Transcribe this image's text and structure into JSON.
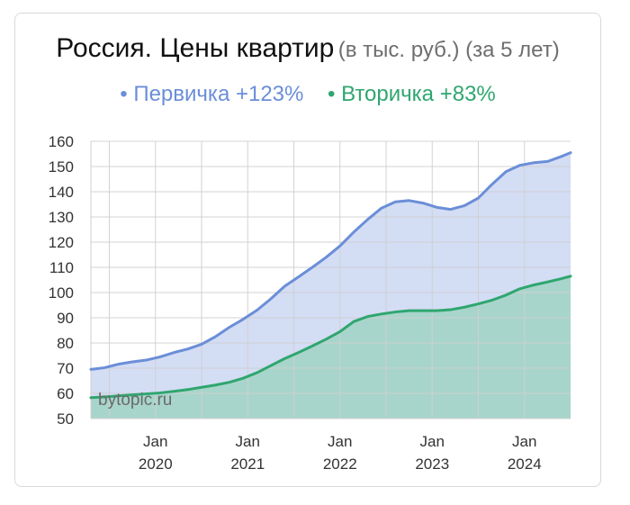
{
  "header": {
    "title": "Россия. Цены квартир",
    "subtitle": "(в тыс. руб.) (за 5 лет)"
  },
  "legend": [
    {
      "label": "• Первичка +123%",
      "color": "#6b8ed8"
    },
    {
      "label": "• Вторичка +83%",
      "color": "#2fa66f"
    }
  ],
  "watermark": "bytopic.ru",
  "chart_data": {
    "type": "area",
    "ylim": [
      50,
      160
    ],
    "yticks": [
      50,
      60,
      70,
      80,
      90,
      100,
      110,
      120,
      130,
      140,
      150,
      160
    ],
    "xlim": [
      2019.3,
      2024.5
    ],
    "xticks": [
      {
        "value": 2020.0,
        "line1": "Jan",
        "line2": "2020"
      },
      {
        "value": 2021.0,
        "line1": "Jan",
        "line2": "2021"
      },
      {
        "value": 2022.0,
        "line1": "Jan",
        "line2": "2022"
      },
      {
        "value": 2023.0,
        "line1": "Jan",
        "line2": "2023"
      },
      {
        "value": 2024.0,
        "line1": "Jan",
        "line2": "2024"
      }
    ],
    "grid": true,
    "series": [
      {
        "name": "Первичка",
        "color": "#6b8ed8",
        "fill": "#d3ddf4",
        "x": [
          2019.3,
          2019.45,
          2019.6,
          2019.75,
          2019.9,
          2020.05,
          2020.2,
          2020.35,
          2020.5,
          2020.65,
          2020.8,
          2020.95,
          2021.1,
          2021.25,
          2021.4,
          2021.55,
          2021.7,
          2021.85,
          2022.0,
          2022.15,
          2022.3,
          2022.45,
          2022.6,
          2022.75,
          2022.9,
          2023.05,
          2023.2,
          2023.35,
          2023.5,
          2023.65,
          2023.8,
          2023.95,
          2024.1,
          2024.25,
          2024.4,
          2024.5
        ],
        "values": [
          69.5,
          70.2,
          71.6,
          72.5,
          73.2,
          74.5,
          76.2,
          77.6,
          79.5,
          82.5,
          86.2,
          89.4,
          93.0,
          97.5,
          102.5,
          106.2,
          110.0,
          114.0,
          118.5,
          124.0,
          129.0,
          133.5,
          136.0,
          136.5,
          135.5,
          133.8,
          133.0,
          134.5,
          137.5,
          143.0,
          148.0,
          150.5,
          151.5,
          152.0,
          154.0,
          155.5
        ]
      },
      {
        "name": "Вторичка",
        "color": "#2fa66f",
        "fill": "#a8d5cb",
        "x": [
          2019.3,
          2019.45,
          2019.6,
          2019.75,
          2019.9,
          2020.05,
          2020.2,
          2020.35,
          2020.5,
          2020.65,
          2020.8,
          2020.95,
          2021.1,
          2021.25,
          2021.4,
          2021.55,
          2021.7,
          2021.85,
          2022.0,
          2022.15,
          2022.3,
          2022.45,
          2022.6,
          2022.75,
          2022.9,
          2023.05,
          2023.2,
          2023.35,
          2023.5,
          2023.65,
          2023.8,
          2023.95,
          2024.1,
          2024.25,
          2024.4,
          2024.5
        ],
        "values": [
          58.3,
          58.6,
          59.0,
          59.4,
          59.8,
          60.2,
          60.8,
          61.5,
          62.4,
          63.3,
          64.4,
          66.0,
          68.2,
          71.0,
          73.8,
          76.2,
          78.8,
          81.5,
          84.5,
          88.5,
          90.5,
          91.5,
          92.3,
          92.8,
          92.8,
          92.8,
          93.2,
          94.2,
          95.5,
          97.0,
          99.0,
          101.5,
          103.0,
          104.2,
          105.5,
          106.5
        ]
      }
    ]
  }
}
